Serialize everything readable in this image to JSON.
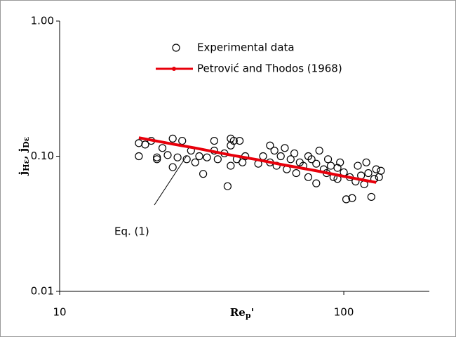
{
  "chart_data": {
    "type": "scatter",
    "x_label": [
      "Re",
      "p",
      "'"
    ],
    "y_label": [
      "j",
      "Hε",
      ", j",
      "Dε"
    ],
    "log_x": true,
    "log_y": true,
    "xlim": [
      10,
      200
    ],
    "ylim": [
      0.01,
      1
    ],
    "xticks": [
      10,
      100
    ],
    "yticks": [
      {
        "value": 1,
        "label": "1.00"
      },
      {
        "value": 0.1,
        "label": "0.10"
      },
      0.01
    ],
    "annotation": "Eq. (1)",
    "series": [
      {
        "name": "Experimental data",
        "kind": "scatter",
        "color": "#000000",
        "x": [
          19,
          19,
          20,
          21,
          22,
          22,
          23,
          24,
          25,
          25,
          26,
          27,
          28,
          29,
          30,
          31,
          32,
          33,
          35,
          35,
          36,
          38,
          40,
          40,
          42,
          43,
          44,
          45,
          39,
          40,
          41,
          50,
          52,
          55,
          55,
          57,
          58,
          60,
          62,
          63,
          65,
          67,
          68,
          70,
          72,
          75,
          75,
          77,
          80,
          80,
          82,
          85,
          87,
          88,
          90,
          92,
          95,
          95,
          97,
          100,
          102,
          105,
          107,
          110,
          112,
          115,
          118,
          120,
          122,
          125,
          128,
          130,
          133,
          135
        ],
        "values": [
          0.1,
          0.125,
          0.122,
          0.13,
          0.095,
          0.098,
          0.115,
          0.102,
          0.135,
          0.083,
          0.098,
          0.13,
          0.095,
          0.11,
          0.09,
          0.1,
          0.074,
          0.098,
          0.13,
          0.11,
          0.095,
          0.105,
          0.085,
          0.12,
          0.095,
          0.13,
          0.09,
          0.1,
          0.06,
          0.135,
          0.13,
          0.088,
          0.1,
          0.12,
          0.09,
          0.11,
          0.085,
          0.1,
          0.115,
          0.08,
          0.095,
          0.105,
          0.075,
          0.09,
          0.085,
          0.1,
          0.07,
          0.095,
          0.063,
          0.088,
          0.11,
          0.08,
          0.075,
          0.095,
          0.085,
          0.07,
          0.068,
          0.082,
          0.09,
          0.076,
          0.048,
          0.07,
          0.049,
          0.065,
          0.085,
          0.072,
          0.062,
          0.09,
          0.075,
          0.05,
          0.068,
          0.08,
          0.07,
          0.078
        ]
      },
      {
        "name": "Petrović and Thodos (1968)",
        "kind": "line",
        "color": "#e8000b",
        "x": [
          19,
          25,
          30,
          40,
          50,
          60,
          80,
          100,
          120,
          130
        ],
        "values": [
          0.137,
          0.123,
          0.115,
          0.102,
          0.094,
          0.087,
          0.078,
          0.071,
          0.066,
          0.064
        ]
      }
    ]
  }
}
